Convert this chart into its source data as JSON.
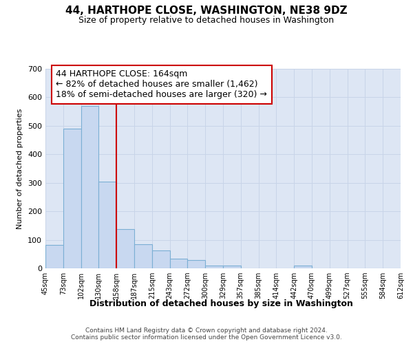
{
  "title": "44, HARTHOPE CLOSE, WASHINGTON, NE38 9DZ",
  "subtitle": "Size of property relative to detached houses in Washington",
  "xlabel": "Distribution of detached houses by size in Washington",
  "ylabel": "Number of detached properties",
  "footer_line1": "Contains HM Land Registry data © Crown copyright and database right 2024.",
  "footer_line2": "Contains public sector information licensed under the Open Government Licence v3.0.",
  "bins": [
    "45sqm",
    "73sqm",
    "102sqm",
    "130sqm",
    "158sqm",
    "187sqm",
    "215sqm",
    "243sqm",
    "272sqm",
    "300sqm",
    "329sqm",
    "357sqm",
    "385sqm",
    "414sqm",
    "442sqm",
    "470sqm",
    "499sqm",
    "527sqm",
    "555sqm",
    "584sqm",
    "612sqm"
  ],
  "values": [
    82,
    490,
    570,
    305,
    137,
    85,
    62,
    35,
    28,
    10,
    10,
    0,
    0,
    0,
    10,
    0,
    0,
    0,
    0,
    0
  ],
  "bar_color": "#c8d8f0",
  "bar_edge_color": "#7bafd4",
  "vline_x": 4,
  "vline_color": "#cc0000",
  "annotation_line1": "44 HARTHOPE CLOSE: 164sqm",
  "annotation_line2": "← 82% of detached houses are smaller (1,462)",
  "annotation_line3": "18% of semi-detached houses are larger (320) →",
  "annotation_box_color": "#ffffff",
  "annotation_border_color": "#cc0000",
  "ylim": [
    0,
    700
  ],
  "yticks": [
    0,
    100,
    200,
    300,
    400,
    500,
    600,
    700
  ],
  "grid_color": "#c8d4e8",
  "bg_color": "#dde6f4",
  "title_fontsize": 11,
  "subtitle_fontsize": 9,
  "ylabel_fontsize": 8,
  "xlabel_fontsize": 9,
  "tick_fontsize": 8,
  "annotation_fontsize": 9,
  "footer_fontsize": 6.5
}
